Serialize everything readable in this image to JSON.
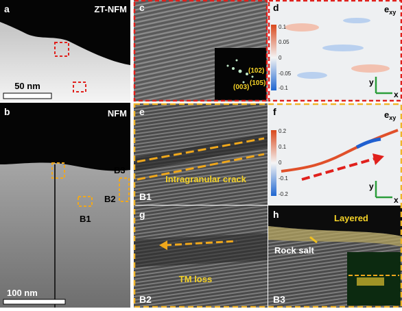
{
  "panels": {
    "a": {
      "letter": "a",
      "label": "ZT-NFM",
      "scale": "50 nm"
    },
    "b": {
      "letter": "b",
      "label": "NFM",
      "scale": "100 nm",
      "regions": [
        "B3",
        "B2",
        "B1"
      ]
    },
    "c": {
      "letter": "c",
      "fft": [
        "(102)",
        "(003)",
        "(105)"
      ]
    },
    "d": {
      "letter": "d",
      "strain": {
        "main": "e",
        "sub": "xy"
      },
      "colorbar": [
        "0.1",
        "0.05",
        "0",
        "-0.05",
        "-0.1"
      ],
      "axes": [
        "y",
        "x"
      ]
    },
    "e": {
      "letter": "e",
      "annotation": "Intragranular crack",
      "region": "B1"
    },
    "f": {
      "letter": "f",
      "strain": {
        "main": "e",
        "sub": "xy"
      },
      "colorbar": [
        "0.2",
        "0.1",
        "0",
        "-0.1",
        "-0.2"
      ],
      "axes": [
        "y",
        "x"
      ]
    },
    "g": {
      "letter": "g",
      "annotation": "TM loss",
      "region": "B2"
    },
    "h": {
      "letter": "h",
      "annotation_top": "Layered",
      "annotation": "Rock salt",
      "region": "B3"
    }
  }
}
